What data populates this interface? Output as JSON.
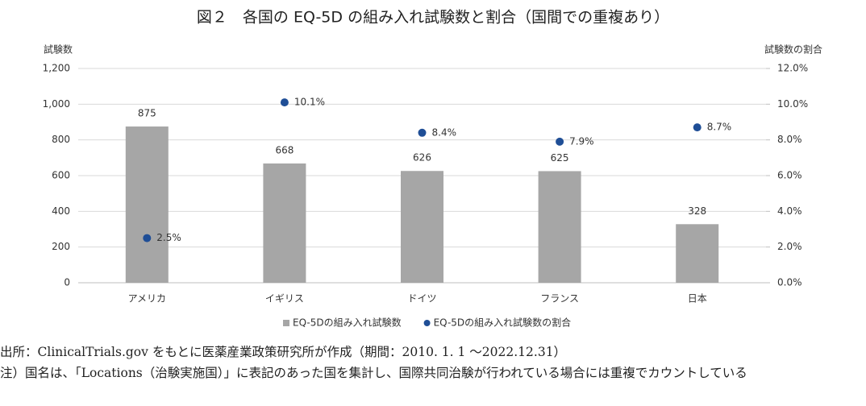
{
  "chart_data": {
    "type": "bar",
    "title": "図２　各国の EQ-5D の組み入れ試験数と割合（国間での重複あり）",
    "ylabel": "試験数",
    "y2label": "試験数の割合",
    "categories": [
      "アメリカ",
      "イギリス",
      "ドイツ",
      "フランス",
      "日本"
    ],
    "series": [
      {
        "name": "EQ-5Dの組み入れ試験数",
        "type": "bar",
        "color": "#a6a6a6",
        "values": [
          875,
          668,
          626,
          625,
          328
        ]
      },
      {
        "name": "EQ-5Dの組み入れ試験数の割合",
        "type": "scatter",
        "axis": "y2",
        "color": "#1f4e96",
        "values": [
          2.5,
          10.1,
          8.4,
          7.9,
          8.7
        ],
        "value_labels": [
          "2.5%",
          "10.1%",
          "8.4%",
          "7.9%",
          "8.7%"
        ]
      }
    ],
    "ylim": [
      0,
      1200
    ],
    "yticks": [
      0,
      200,
      400,
      600,
      800,
      {
        "value": 1000,
        "label": "1,000"
      },
      {
        "value": 1200,
        "label": "1,200"
      }
    ],
    "y2lim": [
      0,
      12
    ],
    "y2ticks": [
      {
        "value": 0,
        "label": "0.0%"
      },
      {
        "value": 2,
        "label": "2.0%"
      },
      {
        "value": 4,
        "label": "4.0%"
      },
      {
        "value": 6,
        "label": "6.0%"
      },
      {
        "value": 8,
        "label": "8.0%"
      },
      {
        "value": 10,
        "label": "10.0%"
      },
      {
        "value": 12,
        "label": "12.0%"
      }
    ],
    "grid": true,
    "legend": "bottom"
  },
  "notes": [
    "出所：ClinicalTrials.gov をもとに医薬産業政策研究所が作成（期間：2010. 1. 1 ～2022.12.31）",
    "注）国名は、「Locations（治験実施国）」に表記のあった国を集計し、国際共同治験が行われている場合には重複でカウントしている"
  ]
}
